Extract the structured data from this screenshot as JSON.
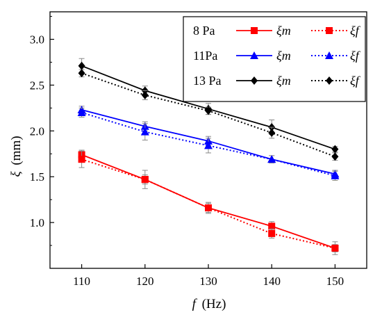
{
  "chart_data": {
    "type": "line",
    "xlabel": {
      "var": "f",
      "unit": "(Hz)"
    },
    "ylabel": {
      "var": "ξ",
      "unit": "(mm)"
    },
    "x": [
      110,
      120,
      130,
      140,
      150
    ],
    "xlim": [
      105,
      155
    ],
    "ylim": [
      0.5,
      3.3
    ],
    "xticks": [
      "110",
      "120",
      "130",
      "140",
      "150"
    ],
    "yticks": [
      "1.0",
      "1.5",
      "2.0",
      "2.5",
      "3.0"
    ],
    "ytick_values": [
      1.0,
      1.5,
      2.0,
      2.5,
      3.0
    ],
    "grid": false,
    "legend_position": "top-right",
    "legend_rows": [
      {
        "label": "8 Pa",
        "m_label": "ξm",
        "f_label": "ξf"
      },
      {
        "label": "11Pa",
        "m_label": "ξm",
        "f_label": "ξf"
      },
      {
        "label": "13 Pa",
        "m_label": "ξm",
        "f_label": "ξf"
      }
    ],
    "series": [
      {
        "name": "8 Pa ξm",
        "color": "#ff0000",
        "marker": "square",
        "style": "solid",
        "values": [
          1.74,
          1.47,
          1.16,
          0.96,
          0.72
        ],
        "error": [
          0.05,
          0.05,
          0.05,
          0.05,
          0.04
        ]
      },
      {
        "name": "8 Pa ξf",
        "color": "#ff0000",
        "marker": "square",
        "style": "dotted",
        "values": [
          1.69,
          1.47,
          1.16,
          0.88,
          0.72
        ],
        "error": [
          0.09,
          0.1,
          0.06,
          0.05,
          0.07
        ]
      },
      {
        "name": "11Pa ξm",
        "color": "#0000ff",
        "marker": "triangle",
        "style": "solid",
        "values": [
          2.23,
          2.05,
          1.89,
          1.69,
          1.53
        ],
        "error": [
          0.04,
          0.05,
          0.05,
          0.04,
          0.04
        ]
      },
      {
        "name": "11Pa ξf",
        "color": "#0000ff",
        "marker": "triangle",
        "style": "dotted",
        "values": [
          2.2,
          1.99,
          1.84,
          1.69,
          1.51
        ],
        "error": [
          0.05,
          0.09,
          0.08,
          0.04,
          0.05
        ]
      },
      {
        "name": "13 Pa ξm",
        "color": "#000000",
        "marker": "diamond",
        "style": "solid",
        "values": [
          2.71,
          2.44,
          2.24,
          2.04,
          1.8
        ],
        "error": [
          0.08,
          0.05,
          0.06,
          0.08,
          0.03
        ]
      },
      {
        "name": "13 Pa ξf",
        "color": "#000000",
        "marker": "diamond",
        "style": "dotted",
        "values": [
          2.63,
          2.39,
          2.22,
          1.98,
          1.72
        ],
        "error": [
          0.04,
          0.05,
          0.04,
          0.06,
          0.04
        ]
      }
    ]
  }
}
